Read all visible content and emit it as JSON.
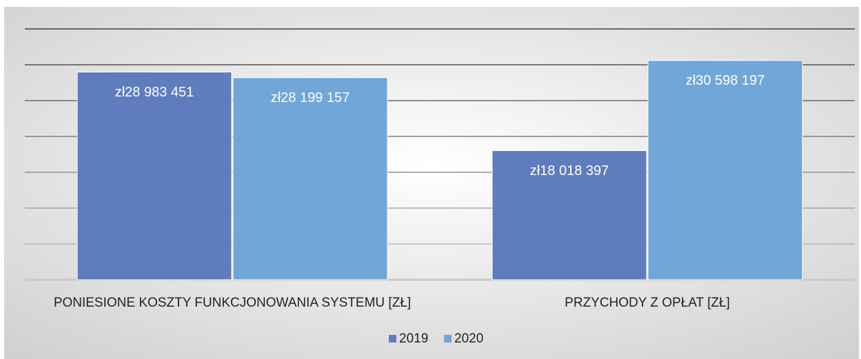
{
  "chart_data": {
    "type": "bar",
    "categories": [
      "PONIESIONE KOSZTY FUNKCJONOWANIA SYSTEMU [ZŁ]",
      "PRZYCHODY Z OPŁAT [ZŁ]"
    ],
    "series": [
      {
        "name": "2019",
        "color": "#5f7dbd",
        "values": [
          28983451,
          18018397
        ],
        "value_labels": [
          "zł28 983 451",
          "zł18 018 397"
        ]
      },
      {
        "name": "2020",
        "color": "#71a6d8",
        "values": [
          28199157,
          30598197
        ],
        "value_labels": [
          "zł28 199 157",
          "zł30 598 197"
        ]
      }
    ],
    "ylim": [
      0,
      35000000
    ],
    "yticks": [
      0,
      5000000,
      10000000,
      15000000,
      20000000,
      25000000,
      30000000,
      35000000
    ],
    "grid": true,
    "legend": "bottom"
  }
}
